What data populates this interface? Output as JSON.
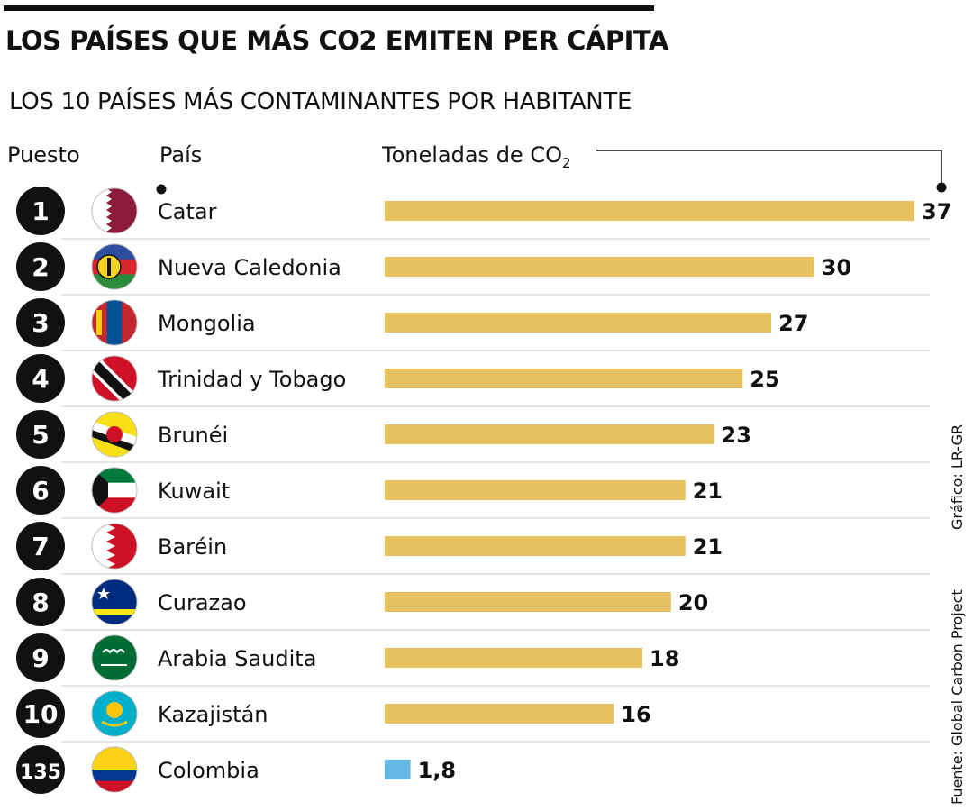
{
  "header": {
    "title": "LOS PAÍSES QUE MÁS CO2 EMITEN PER CÁPITA",
    "subtitle": "LOS 10 PAÍSES MÁS CONTAMINANTES POR HABITANTE"
  },
  "columns": {
    "rank": "Puesto",
    "country": "País",
    "value_main": "Toneladas de CO",
    "value_sub": "2"
  },
  "credits": {
    "graphic": "Gráfico: LR-GR",
    "source": "Fuente: Global Carbon Project"
  },
  "colors": {
    "bar": "#E8C261",
    "highlight_bar": "#66B8E6",
    "rank_circle": "#111111",
    "separator": "#CCCCCC"
  },
  "chart_data": {
    "type": "bar",
    "orientation": "horizontal",
    "title": "LOS PAÍSES QUE MÁS CO2 EMITEN PER CÁPITA",
    "subtitle": "LOS 10 PAÍSES MÁS CONTAMINANTES POR HABITANTE",
    "value_label": "Toneladas de CO2",
    "xlim": [
      0,
      37
    ],
    "rows": [
      {
        "rank": "1",
        "country": "Catar",
        "value": 37,
        "value_label": "37",
        "flag": "qatar-flag-icon"
      },
      {
        "rank": "2",
        "country": "Nueva Caledonia",
        "value": 30,
        "value_label": "30",
        "flag": "new-caledonia-flag-icon"
      },
      {
        "rank": "3",
        "country": "Mongolia",
        "value": 27,
        "value_label": "27",
        "flag": "mongolia-flag-icon"
      },
      {
        "rank": "4",
        "country": "Trinidad y Tobago",
        "value": 25,
        "value_label": "25",
        "flag": "trinidad-tobago-flag-icon"
      },
      {
        "rank": "5",
        "country": "Brunéi",
        "value": 23,
        "value_label": "23",
        "flag": "brunei-flag-icon"
      },
      {
        "rank": "6",
        "country": "Kuwait",
        "value": 21,
        "value_label": "21",
        "flag": "kuwait-flag-icon"
      },
      {
        "rank": "7",
        "country": "Baréin",
        "value": 21,
        "value_label": "21",
        "flag": "bahrain-flag-icon"
      },
      {
        "rank": "8",
        "country": "Curazao",
        "value": 20,
        "value_label": "20",
        "flag": "curacao-flag-icon"
      },
      {
        "rank": "9",
        "country": "Arabia Saudita",
        "value": 18,
        "value_label": "18",
        "flag": "saudi-arabia-flag-icon"
      },
      {
        "rank": "10",
        "country": "Kazajistán",
        "value": 16,
        "value_label": "16",
        "flag": "kazakhstan-flag-icon"
      },
      {
        "rank": "135",
        "country": "Colombia",
        "value": 1.8,
        "value_label": "1,8",
        "flag": "colombia-flag-icon",
        "highlight": true
      }
    ]
  }
}
